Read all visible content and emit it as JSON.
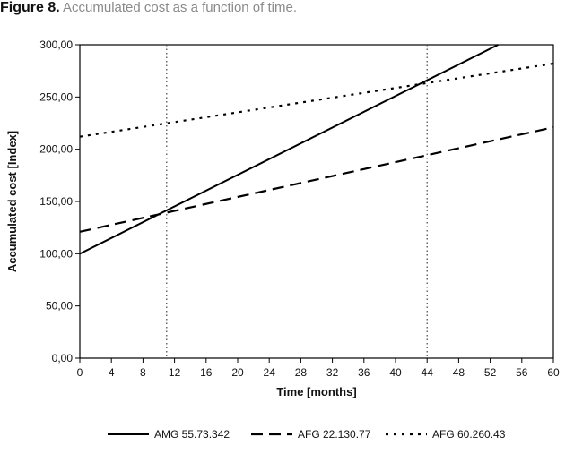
{
  "figure": {
    "label": "Figure 8.",
    "caption": "Accumulated cost as a function of time."
  },
  "chart_data": {
    "type": "line",
    "xlabel": "Time [months]",
    "ylabel": "Accumulated cost [Index]",
    "xlim": [
      0,
      60
    ],
    "ylim": [
      0,
      300
    ],
    "x_ticks": [
      "0",
      "4",
      "8",
      "12",
      "16",
      "20",
      "24",
      "28",
      "32",
      "36",
      "40",
      "44",
      "48",
      "52",
      "56",
      "60"
    ],
    "y_ticks": [
      "0,00",
      "50,00",
      "100,00",
      "150,00",
      "200,00",
      "250,00",
      "300,00"
    ],
    "grid": false,
    "reference_lines_x": [
      11,
      44
    ],
    "legend_position": "bottom",
    "series": [
      {
        "name": "AMG 55.73.342",
        "style": "solid",
        "x": [
          0,
          53
        ],
        "y": [
          100,
          300
        ]
      },
      {
        "name": "AFG 22.130.77",
        "style": "dashed",
        "x": [
          0,
          60
        ],
        "y": [
          121,
          221
        ]
      },
      {
        "name": "AFG 60.260.43",
        "style": "dotted",
        "x": [
          0,
          60
        ],
        "y": [
          212,
          282
        ]
      }
    ]
  }
}
